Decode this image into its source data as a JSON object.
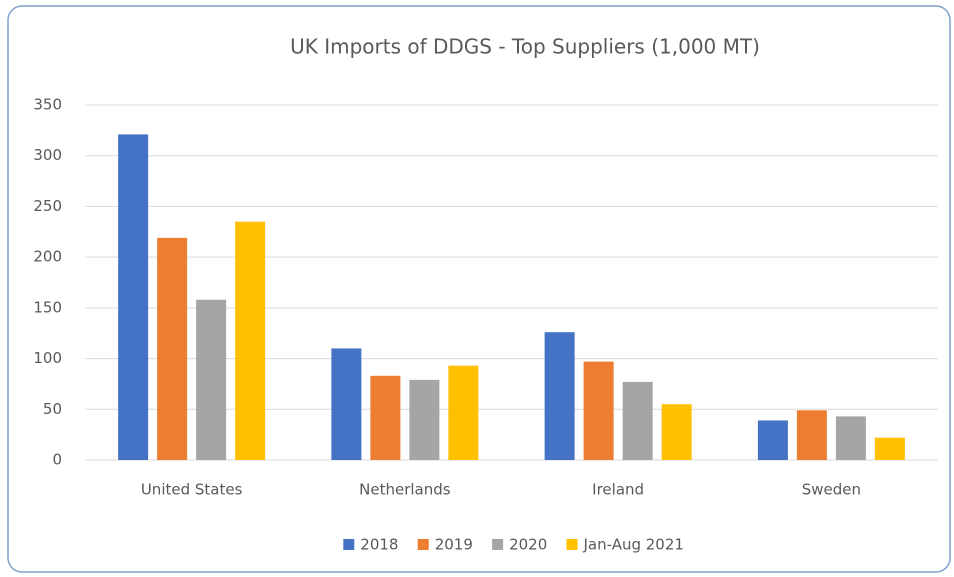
{
  "chart_data": {
    "type": "bar",
    "title": "UK Imports of DDGS - Top Suppliers (1,000 MT)",
    "categories": [
      "United States",
      "Netherlands",
      "Ireland",
      "Sweden"
    ],
    "series": [
      {
        "name": "2018",
        "color": "#4472c4",
        "values": [
          321,
          110,
          126,
          39
        ]
      },
      {
        "name": "2019",
        "color": "#ed7d31",
        "values": [
          219,
          83,
          97,
          49
        ]
      },
      {
        "name": "2020",
        "color": "#a5a5a5",
        "values": [
          158,
          79,
          77,
          43
        ]
      },
      {
        "name": "Jan-Aug 2021",
        "color": "#ffc000",
        "values": [
          235,
          93,
          55,
          22
        ]
      }
    ],
    "ylim": [
      0,
      350
    ],
    "yticks": [
      0,
      50,
      100,
      150,
      200,
      250,
      300,
      350
    ],
    "grid": true,
    "legend": "bottom"
  }
}
